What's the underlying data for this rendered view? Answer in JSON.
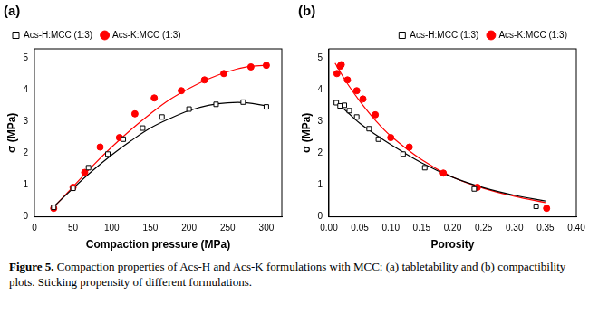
{
  "chart_data": [
    {
      "type": "scatter",
      "title": "(a)",
      "x_label": "Compaction pressure (MPa)",
      "y_label": "σ (MPa)",
      "xlim": [
        0,
        320
      ],
      "xticks": [
        0,
        50,
        100,
        150,
        200,
        250,
        300
      ],
      "ylim": [
        0,
        5.3
      ],
      "yticks": [
        0,
        1,
        2,
        3,
        4,
        5
      ],
      "grid": false,
      "legend": "top-left",
      "series": [
        {
          "name": "Acs-H:MCC (1:3)",
          "color": "#000000",
          "marker": "open_square",
          "x": [
            25,
            50,
            70,
            95,
            115,
            140,
            165,
            200,
            235,
            270,
            300
          ],
          "values": [
            0.3,
            0.9,
            1.55,
            1.98,
            2.45,
            2.8,
            3.15,
            3.4,
            3.55,
            3.62,
            3.47
          ],
          "fit": {
            "x": [
              25,
              50,
              75,
              100,
              125,
              150,
              175,
              200,
              225,
              250,
              275,
              300
            ],
            "values": [
              0.32,
              0.9,
              1.45,
              1.95,
              2.4,
              2.8,
              3.1,
              3.35,
              3.52,
              3.6,
              3.6,
              3.5
            ]
          }
        },
        {
          "name": "Acs-K:MCC (1:3)",
          "color": "#ff0000",
          "marker": "circle",
          "x": [
            25,
            50,
            65,
            85,
            110,
            130,
            155,
            190,
            220,
            245,
            280,
            300
          ],
          "values": [
            0.27,
            0.93,
            1.4,
            2.2,
            2.5,
            3.25,
            3.75,
            3.98,
            4.32,
            4.52,
            4.73,
            4.78
          ],
          "fit": {
            "x": [
              25,
              50,
              75,
              100,
              125,
              150,
              175,
              200,
              225,
              250,
              275,
              300
            ],
            "values": [
              0.3,
              0.95,
              1.6,
              2.2,
              2.75,
              3.25,
              3.7,
              4.05,
              4.35,
              4.58,
              4.73,
              4.78
            ]
          }
        }
      ]
    },
    {
      "type": "scatter",
      "title": "(b)",
      "x_label": "Porosity",
      "y_label": "σ (MPa)",
      "xlim": [
        0,
        0.4
      ],
      "xticks": [
        {
          "value": 0,
          "label": "0.00"
        },
        {
          "value": 0.05,
          "label": "0.05"
        },
        {
          "value": 0.1,
          "label": "0.10"
        },
        {
          "value": 0.15,
          "label": "0.15"
        },
        {
          "value": 0.2,
          "label": "0.20"
        },
        {
          "value": 0.25,
          "label": "0.25"
        },
        {
          "value": 0.3,
          "label": "0.30"
        },
        {
          "value": 0.35,
          "label": "0.35"
        },
        {
          "value": 0.4,
          "label": "0.40"
        }
      ],
      "ylim": [
        0,
        5.3
      ],
      "yticks": [
        0,
        1,
        2,
        3,
        4,
        5
      ],
      "grid": false,
      "legend": "top-right",
      "series": [
        {
          "name": "Acs-H:MCC (1:3)",
          "color": "#000000",
          "marker": "open_square",
          "x": [
            0.012,
            0.018,
            0.025,
            0.033,
            0.045,
            0.065,
            0.08,
            0.12,
            0.155,
            0.235,
            0.335
          ],
          "values": [
            3.6,
            3.5,
            3.52,
            3.35,
            3.15,
            2.78,
            2.45,
            1.98,
            1.55,
            0.88,
            0.33
          ],
          "fit": {
            "x": [
              0.01,
              0.03,
              0.05,
              0.075,
              0.1,
              0.15,
              0.2,
              0.25,
              0.3,
              0.35
            ],
            "values": [
              3.65,
              3.3,
              2.95,
              2.6,
              2.28,
              1.7,
              1.25,
              0.92,
              0.68,
              0.5
            ]
          }
        },
        {
          "name": "Acs-K:MCC (1:3)",
          "color": "#ff0000",
          "marker": "circle",
          "x": [
            0.013,
            0.018,
            0.02,
            0.03,
            0.045,
            0.055,
            0.075,
            0.1,
            0.13,
            0.185,
            0.24,
            0.352
          ],
          "values": [
            4.52,
            4.75,
            4.8,
            4.32,
            3.98,
            3.72,
            3.22,
            2.5,
            2.2,
            1.38,
            0.93,
            0.27
          ],
          "fit": {
            "x": [
              0.01,
              0.03,
              0.05,
              0.075,
              0.1,
              0.15,
              0.2,
              0.25,
              0.3,
              0.35
            ],
            "values": [
              4.85,
              4.2,
              3.65,
              3.05,
              2.55,
              1.8,
              1.25,
              0.9,
              0.65,
              0.45
            ]
          }
        }
      ]
    }
  ],
  "caption_label": "Figure 5.",
  "caption": "Compaction properties of Acs-H and Acs-K formulations with MCC: (a) tabletability and (b) compactibility plots. Sticking propensity of different formulations."
}
